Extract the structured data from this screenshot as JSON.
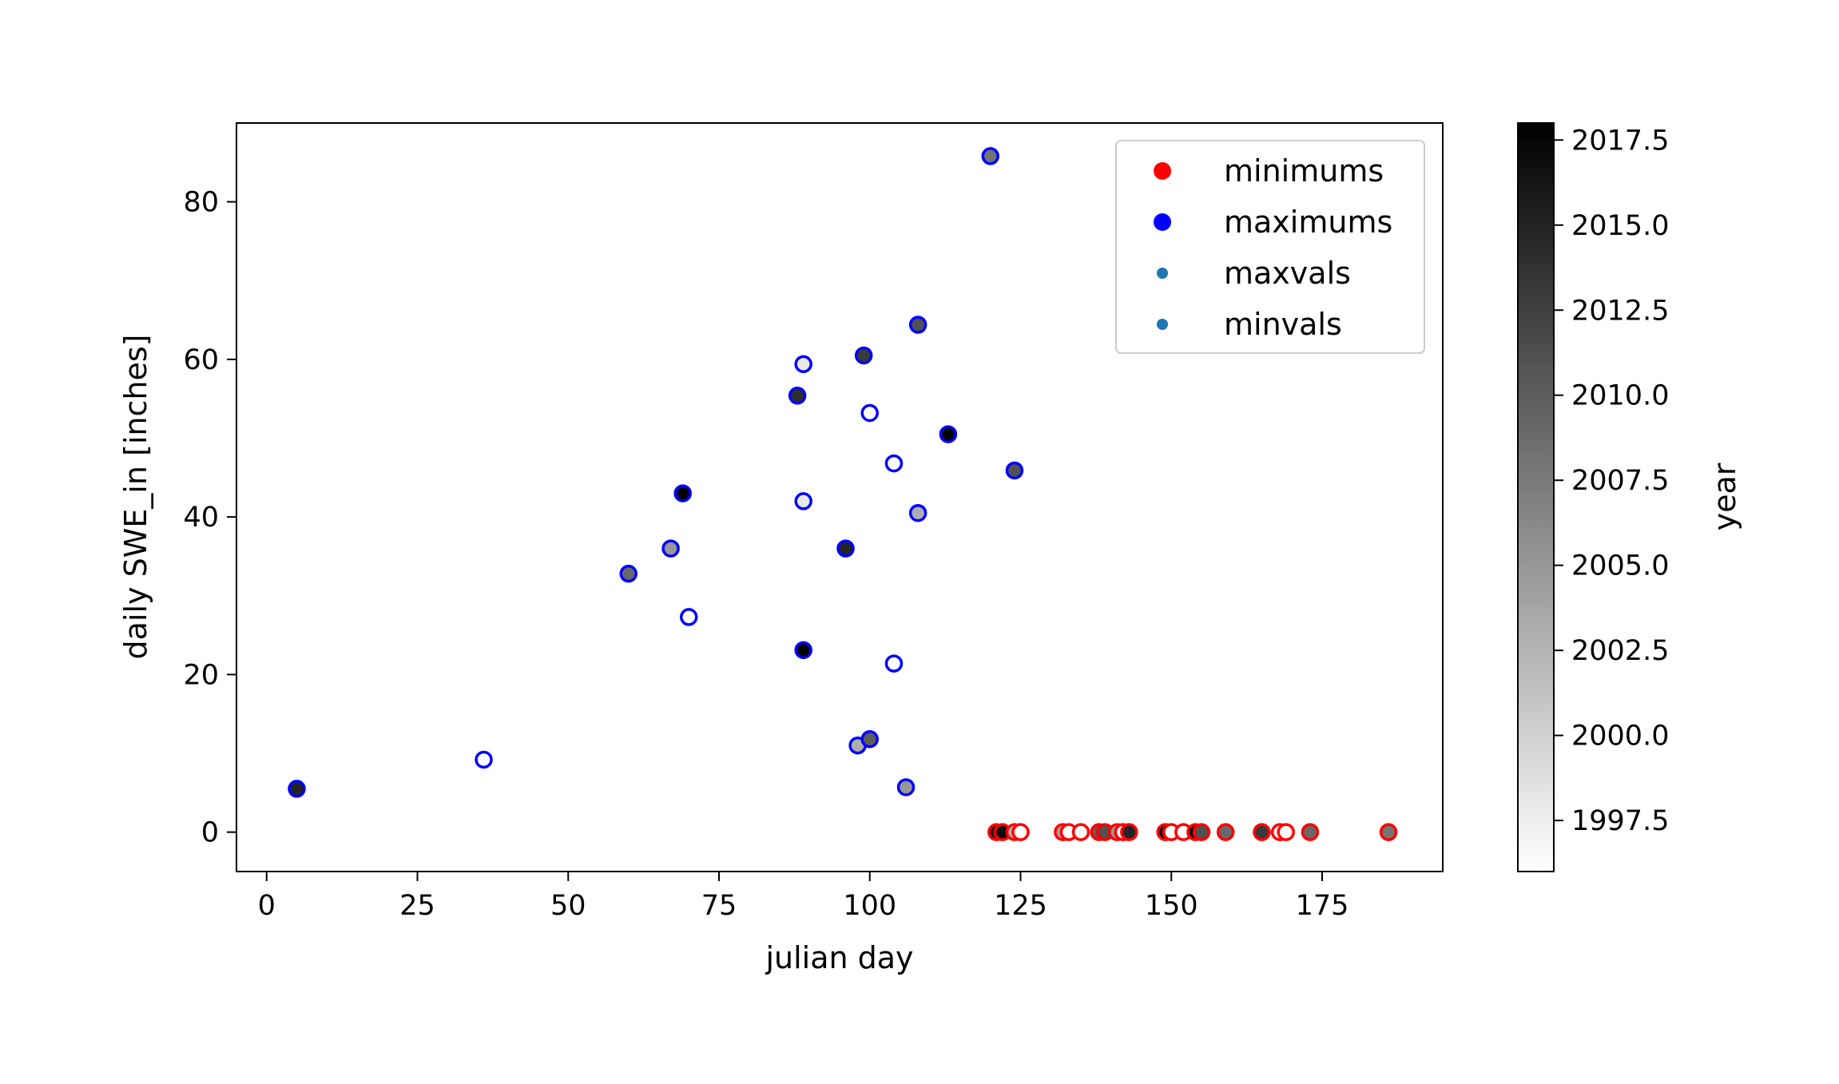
{
  "chart_data": {
    "type": "scatter",
    "xlabel": "julian day",
    "ylabel": "daily SWE_in [inches]",
    "xlim": [
      -5,
      195
    ],
    "ylim": [
      -5,
      90
    ],
    "xticks": [
      0,
      25,
      50,
      75,
      100,
      125,
      150,
      175
    ],
    "yticks": [
      0,
      20,
      40,
      60,
      80
    ],
    "grid": false,
    "legend_placement": "top-right",
    "legend": [
      {
        "label": "minimums",
        "color": "#ff0000",
        "marker": "large"
      },
      {
        "label": "maximums",
        "color": "#0000ff",
        "marker": "large"
      },
      {
        "label": "maxvals",
        "color": "#1f77b4",
        "marker": "small"
      },
      {
        "label": "minvals",
        "color": "#1f77b4",
        "marker": "small"
      }
    ],
    "colorbar": {
      "label": "year",
      "range": [
        1996,
        2018
      ],
      "ticks": [
        "1997.5",
        "2000.0",
        "2002.5",
        "2005.0",
        "2007.5",
        "2010.0",
        "2012.5",
        "2015.0",
        "2017.5"
      ],
      "tick_values": [
        1997.5,
        2000.0,
        2002.5,
        2005.0,
        2007.5,
        2010.0,
        2012.5,
        2015.0,
        2017.5
      ],
      "colormap": "greys"
    },
    "series": [
      {
        "name": "maximums",
        "edge_color": "#0000ff",
        "points": [
          {
            "x": 5,
            "y": 5.5,
            "year": 2015
          },
          {
            "x": 36,
            "y": 9.2,
            "year": 1996
          },
          {
            "x": 60,
            "y": 32.8,
            "year": 2009
          },
          {
            "x": 67,
            "y": 36.0,
            "year": 2005
          },
          {
            "x": 69,
            "y": 43.0,
            "year": 2018
          },
          {
            "x": 70,
            "y": 27.3,
            "year": 1996
          },
          {
            "x": 88,
            "y": 55.4,
            "year": 2014
          },
          {
            "x": 89,
            "y": 59.4,
            "year": 1998
          },
          {
            "x": 89,
            "y": 42.0,
            "year": 1998
          },
          {
            "x": 89,
            "y": 23.1,
            "year": 2018
          },
          {
            "x": 96,
            "y": 36.0,
            "year": 2015
          },
          {
            "x": 98,
            "y": 11.0,
            "year": 2003
          },
          {
            "x": 99,
            "y": 60.5,
            "year": 2013
          },
          {
            "x": 100,
            "y": 53.2,
            "year": 1996
          },
          {
            "x": 100,
            "y": 11.8,
            "year": 2010
          },
          {
            "x": 104,
            "y": 46.8,
            "year": 1996
          },
          {
            "x": 104,
            "y": 21.4,
            "year": 1996
          },
          {
            "x": 106,
            "y": 5.7,
            "year": 2005
          },
          {
            "x": 108,
            "y": 64.4,
            "year": 2011
          },
          {
            "x": 108,
            "y": 40.5,
            "year": 2003
          },
          {
            "x": 113,
            "y": 50.5,
            "year": 2018
          },
          {
            "x": 120,
            "y": 85.8,
            "year": 2008
          },
          {
            "x": 124,
            "y": 45.9,
            "year": 2011
          }
        ]
      },
      {
        "name": "minimums",
        "edge_color": "#ff0000",
        "points": [
          {
            "x": 121,
            "y": 0,
            "year": 2016
          },
          {
            "x": 122,
            "y": 0,
            "year": 2017
          },
          {
            "x": 124,
            "y": 0,
            "year": 2003
          },
          {
            "x": 125,
            "y": 0,
            "year": 1996
          },
          {
            "x": 132,
            "y": 0,
            "year": 2004
          },
          {
            "x": 133,
            "y": 0,
            "year": 1996
          },
          {
            "x": 135,
            "y": 0,
            "year": 1996
          },
          {
            "x": 138,
            "y": 0,
            "year": 2010
          },
          {
            "x": 139,
            "y": 0,
            "year": 2011
          },
          {
            "x": 141,
            "y": 0,
            "year": 2005
          },
          {
            "x": 142,
            "y": 0,
            "year": 1996
          },
          {
            "x": 143,
            "y": 0,
            "year": 2015
          },
          {
            "x": 149,
            "y": 0,
            "year": 2018
          },
          {
            "x": 150,
            "y": 0,
            "year": 1996
          },
          {
            "x": 152,
            "y": 0,
            "year": 1996
          },
          {
            "x": 154,
            "y": 0,
            "year": 2018
          },
          {
            "x": 155,
            "y": 0,
            "year": 2011
          },
          {
            "x": 159,
            "y": 0,
            "year": 2009
          },
          {
            "x": 165,
            "y": 0,
            "year": 2013
          },
          {
            "x": 168,
            "y": 0,
            "year": 1996
          },
          {
            "x": 169,
            "y": 0,
            "year": 1996
          },
          {
            "x": 173,
            "y": 0,
            "year": 2009
          },
          {
            "x": 186,
            "y": 0,
            "year": 2008
          }
        ]
      }
    ]
  }
}
